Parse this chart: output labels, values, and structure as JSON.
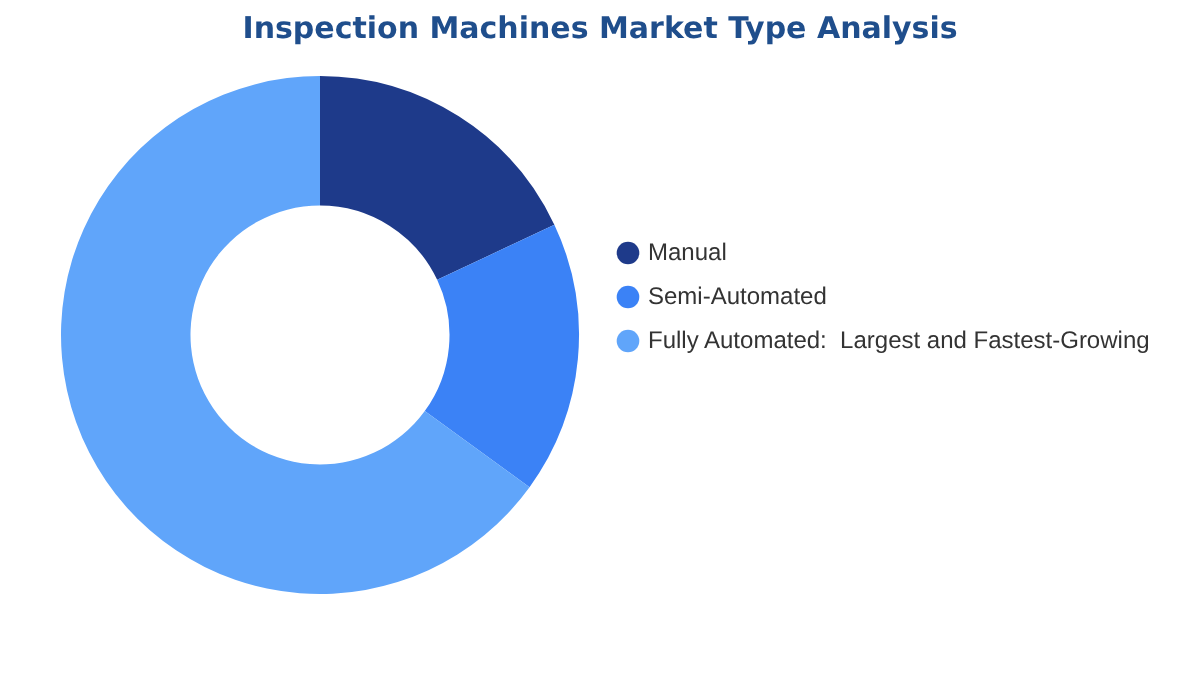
{
  "chart_data": {
    "type": "donut",
    "title": "Inspection Machines Market Type Analysis",
    "categories": [
      "Manual",
      "Semi-Automated",
      "Fully Automated:  Largest and Fastest-Growing"
    ],
    "values": [
      18,
      17,
      65
    ],
    "colors": [
      "#1e3a8a",
      "#3b82f6",
      "#60a5fa"
    ],
    "legend": "right"
  }
}
